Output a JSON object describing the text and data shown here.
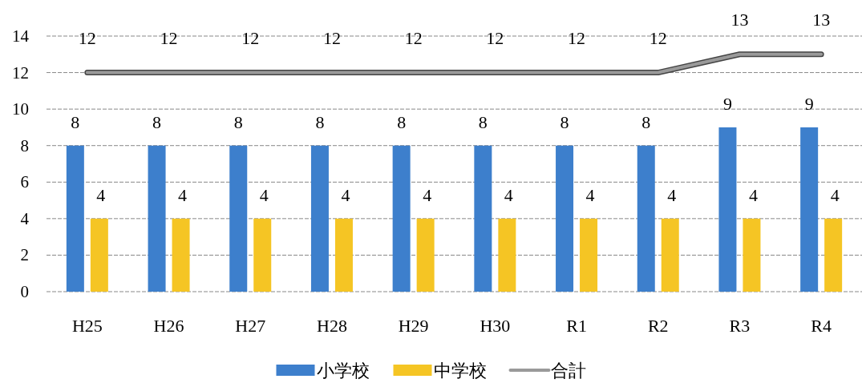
{
  "chart_data": {
    "type": "bar",
    "categories": [
      "H25",
      "H26",
      "H27",
      "H28",
      "H29",
      "H30",
      "R1",
      "R2",
      "R3",
      "R4"
    ],
    "series": [
      {
        "name": "小学校",
        "color": "#3d7fcc",
        "values": [
          8,
          8,
          8,
          8,
          8,
          8,
          8,
          8,
          9,
          9
        ]
      },
      {
        "name": "中学校",
        "color": "#f5c524",
        "values": [
          4,
          4,
          4,
          4,
          4,
          4,
          4,
          4,
          4,
          4
        ]
      },
      {
        "name": "合計",
        "type": "line",
        "color": "#9a9a9a",
        "values": [
          12,
          12,
          12,
          12,
          12,
          12,
          12,
          12,
          13,
          13
        ]
      }
    ],
    "ylim": [
      0,
      14
    ],
    "yticks": [
      0,
      2,
      4,
      6,
      8,
      10,
      12,
      14
    ],
    "grid": "y",
    "legend": "bottom",
    "data_labels": true
  }
}
